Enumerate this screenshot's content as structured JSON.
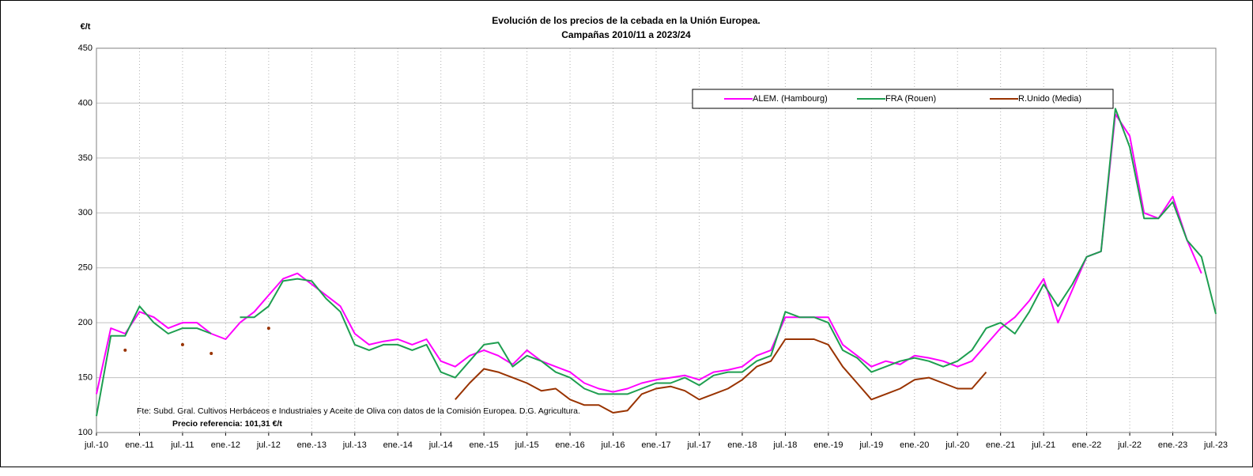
{
  "chart_data": {
    "type": "line",
    "title": "Evolución de los precios de la cebada en la Unión Europea.",
    "subtitle": "Campañas 2010/11 a 2023/24",
    "y_label": "€/t",
    "notes": [
      "Fte: Subd. Gral. Cultivos Herbáceos e Industriales y Aceite de Oliva con datos de la Comisión Europea. D.G. Agricultura.",
      "Precio referencia: 101,31 €/t"
    ],
    "x": [
      "2010-07",
      "2010-09",
      "2010-11",
      "2011-01",
      "2011-03",
      "2011-05",
      "2011-07",
      "2011-09",
      "2011-11",
      "2012-01",
      "2012-03",
      "2012-05",
      "2012-07",
      "2012-09",
      "2012-11",
      "2013-01",
      "2013-03",
      "2013-05",
      "2013-07",
      "2013-09",
      "2013-11",
      "2014-01",
      "2014-03",
      "2014-05",
      "2014-07",
      "2014-09",
      "2014-11",
      "2015-01",
      "2015-03",
      "2015-05",
      "2015-07",
      "2015-09",
      "2015-11",
      "2016-01",
      "2016-03",
      "2016-05",
      "2016-07",
      "2016-09",
      "2016-11",
      "2017-01",
      "2017-03",
      "2017-05",
      "2017-07",
      "2017-09",
      "2017-11",
      "2018-01",
      "2018-03",
      "2018-05",
      "2018-07",
      "2018-09",
      "2018-11",
      "2019-01",
      "2019-03",
      "2019-05",
      "2019-07",
      "2019-09",
      "2019-11",
      "2020-01",
      "2020-03",
      "2020-05",
      "2020-07",
      "2020-09",
      "2020-11",
      "2021-01",
      "2021-03",
      "2021-05",
      "2021-07",
      "2021-09",
      "2021-11",
      "2022-01",
      "2022-03",
      "2022-05",
      "2022-07",
      "2022-09",
      "2022-11",
      "2023-01",
      "2023-03",
      "2023-05",
      "2023-07"
    ],
    "series": [
      {
        "name": "ALEM. (Hambourg)",
        "color": "#ff00ff",
        "values": [
          135,
          195,
          190,
          210,
          205,
          195,
          200,
          200,
          190,
          185,
          200,
          210,
          225,
          240,
          245,
          235,
          225,
          215,
          190,
          180,
          183,
          185,
          180,
          185,
          165,
          160,
          170,
          175,
          170,
          162,
          175,
          165,
          160,
          155,
          145,
          140,
          137,
          140,
          145,
          148,
          150,
          152,
          148,
          155,
          157,
          160,
          170,
          175,
          205,
          205,
          205,
          205,
          180,
          170,
          160,
          165,
          162,
          170,
          168,
          165,
          160,
          165,
          180,
          195,
          205,
          220,
          240,
          200,
          230,
          260,
          265,
          390,
          370,
          300,
          295,
          315,
          275,
          245,
          null
        ]
      },
      {
        "name": "FRA (Rouen)",
        "color": "#1e9e50",
        "values": [
          115,
          188,
          188,
          215,
          200,
          190,
          195,
          195,
          190,
          null,
          205,
          205,
          215,
          238,
          240,
          238,
          222,
          210,
          180,
          175,
          180,
          180,
          175,
          180,
          155,
          150,
          165,
          180,
          182,
          160,
          170,
          165,
          155,
          150,
          140,
          135,
          135,
          135,
          140,
          145,
          145,
          150,
          143,
          152,
          155,
          155,
          165,
          170,
          210,
          205,
          205,
          200,
          175,
          168,
          155,
          160,
          165,
          168,
          165,
          160,
          165,
          175,
          195,
          200,
          190,
          210,
          235,
          215,
          235,
          260,
          265,
          395,
          360,
          295,
          295,
          310,
          275,
          260,
          208
        ]
      },
      {
        "name": "R.Unido (Media)",
        "color": "#993300",
        "values": [
          null,
          null,
          175,
          null,
          null,
          null,
          180,
          null,
          172,
          null,
          null,
          null,
          195,
          null,
          null,
          null,
          null,
          null,
          null,
          null,
          null,
          null,
          null,
          null,
          null,
          130,
          145,
          158,
          155,
          150,
          145,
          138,
          140,
          130,
          125,
          125,
          118,
          120,
          135,
          140,
          142,
          138,
          130,
          135,
          140,
          148,
          160,
          165,
          185,
          185,
          185,
          180,
          160,
          145,
          130,
          135,
          140,
          148,
          150,
          145,
          140,
          140,
          155,
          null,
          null,
          null,
          null,
          null,
          null,
          null,
          null,
          null,
          null,
          null,
          null,
          null,
          null,
          null,
          null
        ]
      }
    ],
    "ylim": [
      100,
      450
    ],
    "yticks": [
      100,
      150,
      200,
      250,
      300,
      350,
      400,
      450
    ],
    "xlim": [
      "2010-07",
      "2023-07"
    ],
    "xticks": [
      {
        "value": "2010-07",
        "label": "jul.-10"
      },
      {
        "value": "2011-01",
        "label": "ene.-11"
      },
      {
        "value": "2011-07",
        "label": "jul.-11"
      },
      {
        "value": "2012-01",
        "label": "ene.-12"
      },
      {
        "value": "2012-07",
        "label": "jul.-12"
      },
      {
        "value": "2013-01",
        "label": "ene.-13"
      },
      {
        "value": "2013-07",
        "label": "jul.-13"
      },
      {
        "value": "2014-01",
        "label": "ene.-14"
      },
      {
        "value": "2014-07",
        "label": "jul.-14"
      },
      {
        "value": "2015-01",
        "label": "ene.-15"
      },
      {
        "value": "2015-07",
        "label": "jul.-15"
      },
      {
        "value": "2016-01",
        "label": "ene.-16"
      },
      {
        "value": "2016-07",
        "label": "jul.-16"
      },
      {
        "value": "2017-01",
        "label": "ene.-17"
      },
      {
        "value": "2017-07",
        "label": "jul.-17"
      },
      {
        "value": "2018-01",
        "label": "ene.-18"
      },
      {
        "value": "2018-07",
        "label": "jul.-18"
      },
      {
        "value": "2019-01",
        "label": "ene.-19"
      },
      {
        "value": "2019-07",
        "label": "jul.-19"
      },
      {
        "value": "2020-01",
        "label": "ene.-20"
      },
      {
        "value": "2020-07",
        "label": "jul.-20"
      },
      {
        "value": "2021-01",
        "label": "ene.-21"
      },
      {
        "value": "2021-07",
        "label": "jul.-21"
      },
      {
        "value": "2022-01",
        "label": "ene.-22"
      },
      {
        "value": "2022-07",
        "label": "jul.-22"
      },
      {
        "value": "2023-01",
        "label": "ene.-23"
      },
      {
        "value": "2023-07",
        "label": "jul.-23"
      }
    ],
    "grid": true
  }
}
